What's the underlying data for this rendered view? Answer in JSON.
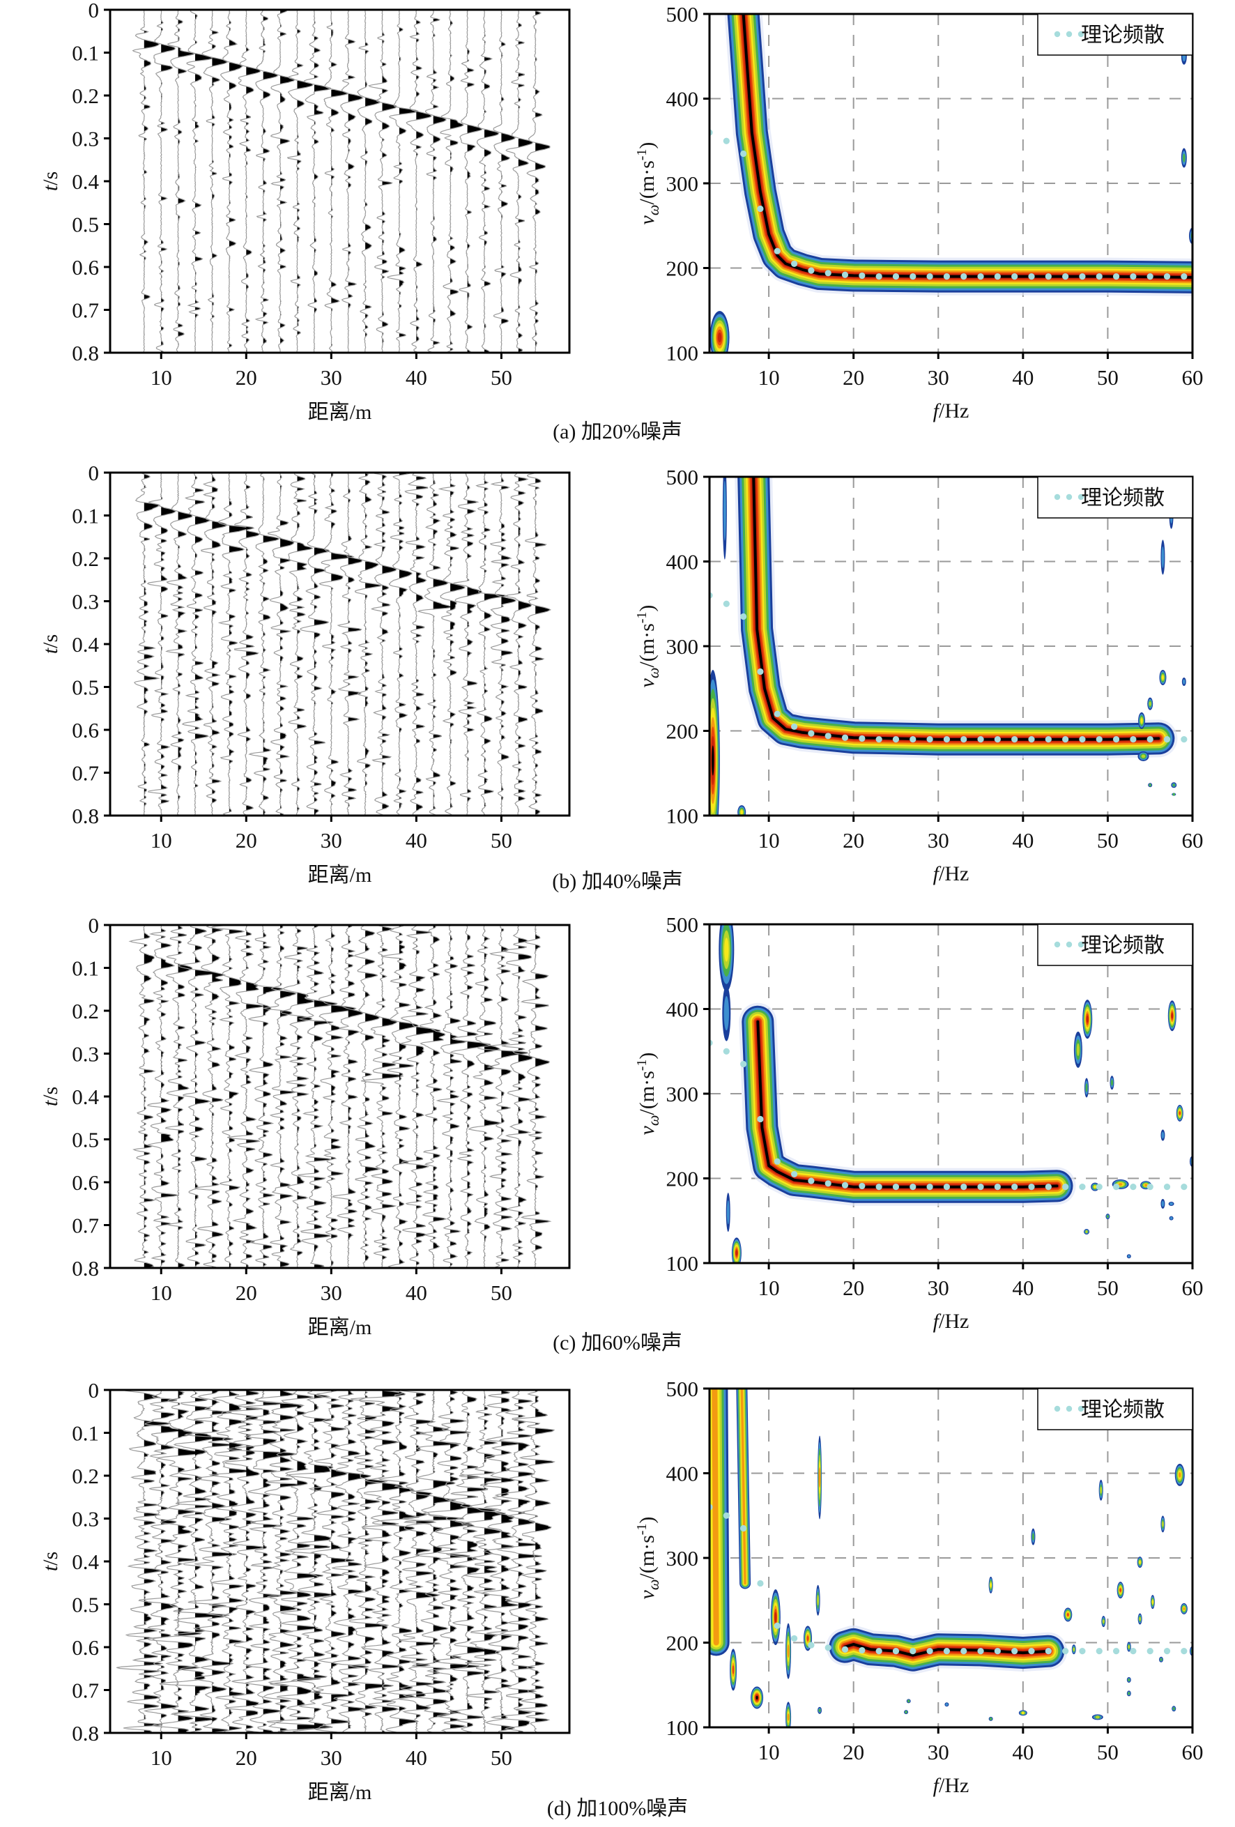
{
  "figure": {
    "panels": [
      {
        "id": "a",
        "caption": "(a) 加20%噪声",
        "noise_percent": 20
      },
      {
        "id": "b",
        "caption": "(b) 加40%噪声",
        "noise_percent": 40
      },
      {
        "id": "c",
        "caption": "(c) 加60%噪声",
        "noise_percent": 60
      },
      {
        "id": "d",
        "caption": "(d) 加100%噪声",
        "noise_percent": 100
      }
    ]
  },
  "chart_data": [
    {
      "type": "seismogram",
      "title": "",
      "xlabel": "距离/m",
      "ylabel_italic": "t",
      "ylabel_rest": "/s",
      "xlim": [
        4,
        58
      ],
      "ylim": [
        0,
        0.8
      ],
      "y_inverted": true,
      "xticks": [
        10,
        20,
        30,
        40,
        50
      ],
      "xtick_labels": [
        "10",
        "20",
        "30",
        "40",
        "50"
      ],
      "yticks": [
        0,
        0.1,
        0.2,
        0.3,
        0.4,
        0.5,
        0.6,
        0.7,
        0.8
      ],
      "ytick_labels": [
        "0",
        "0.1",
        "0.2",
        "0.3",
        "0.4",
        "0.5",
        "0.6",
        "0.7",
        "0.8"
      ],
      "trace_offsets_m": [
        8,
        10,
        12,
        14,
        16,
        18,
        20,
        22,
        24,
        26,
        28,
        30,
        32,
        34,
        36,
        38,
        40,
        42,
        44,
        46,
        48,
        50,
        52,
        54
      ],
      "first_arrival": {
        "offset_m": [
          8,
          54
        ],
        "time_s": [
          0.08,
          0.32
        ]
      },
      "grid": false
    },
    {
      "type": "heatmap",
      "title": "",
      "xlabel_italic": "f",
      "xlabel_rest": "/Hz",
      "ylabel": "vω/(m·s-1)",
      "ylabel_v": "v",
      "ylabel_sub": "ω",
      "ylabel_unit": "/(m·s",
      "ylabel_sup": "-1",
      "ylabel_close": ")",
      "xlim": [
        3,
        60
      ],
      "ylim": [
        100,
        500
      ],
      "xticks": [
        10,
        20,
        30,
        40,
        50,
        60
      ],
      "xtick_labels": [
        "10",
        "20",
        "30",
        "40",
        "50",
        "60"
      ],
      "yticks": [
        100,
        200,
        300,
        400,
        500
      ],
      "ytick_labels": [
        "100",
        "200",
        "300",
        "400",
        "500"
      ],
      "grid": "dashed",
      "legend": {
        "label": "理论频散",
        "placement": "top-right",
        "marker": "dotted"
      },
      "colormap": [
        "#ffffff",
        "#1a3f9c",
        "#3d8fd0",
        "#48b04a",
        "#b8d42a",
        "#f6e81a",
        "#f39a12",
        "#e8480c",
        "#c8230a",
        "#000000"
      ],
      "theoretical_dispersion": {
        "color": "#a6dcdc",
        "f_hz": [
          3,
          5,
          7,
          9,
          11,
          13,
          15,
          17,
          19,
          21,
          23,
          25,
          27,
          29,
          31,
          33,
          35,
          37,
          39,
          41,
          43,
          45,
          47,
          49,
          51,
          53,
          55,
          57,
          59
        ],
        "v_ms": [
          360,
          350,
          335,
          270,
          220,
          205,
          197,
          194,
          192,
          191,
          190,
          190,
          190,
          190,
          190,
          190,
          190,
          190,
          190,
          190,
          190,
          190,
          190,
          190,
          190,
          190,
          190,
          190,
          190
        ]
      },
      "energy_ridge": {
        "a": {
          "f_hz": [
            7,
            8,
            9,
            10,
            11,
            12,
            14,
            16,
            20,
            30,
            40,
            50,
            60
          ],
          "v_ms": [
            500,
            360,
            290,
            240,
            215,
            205,
            198,
            193,
            191,
            190,
            190,
            190,
            189
          ],
          "f_end": 60
        },
        "b": {
          "f_hz": [
            8.2,
            8.6,
            9.5,
            10.5,
            12,
            14,
            16,
            20,
            30,
            40,
            50,
            56
          ],
          "v_ms": [
            500,
            320,
            250,
            215,
            202,
            198,
            196,
            192,
            190,
            190,
            190,
            191
          ],
          "f_end": 56
        },
        "c": {
          "f_hz": [
            8.7,
            9.2,
            10,
            11,
            13,
            15,
            20,
            30,
            40,
            44
          ],
          "v_ms": [
            385,
            260,
            215,
            208,
            198,
            196,
            190,
            190,
            190,
            191
          ],
          "f_end": 44
        },
        "d": {
          "f_hz": [
            19,
            20,
            22,
            25,
            27,
            30,
            35,
            40,
            43
          ],
          "v_ms": [
            195,
            198,
            192,
            190,
            185,
            192,
            191,
            188,
            190
          ],
          "f_end": 43
        }
      }
    }
  ]
}
